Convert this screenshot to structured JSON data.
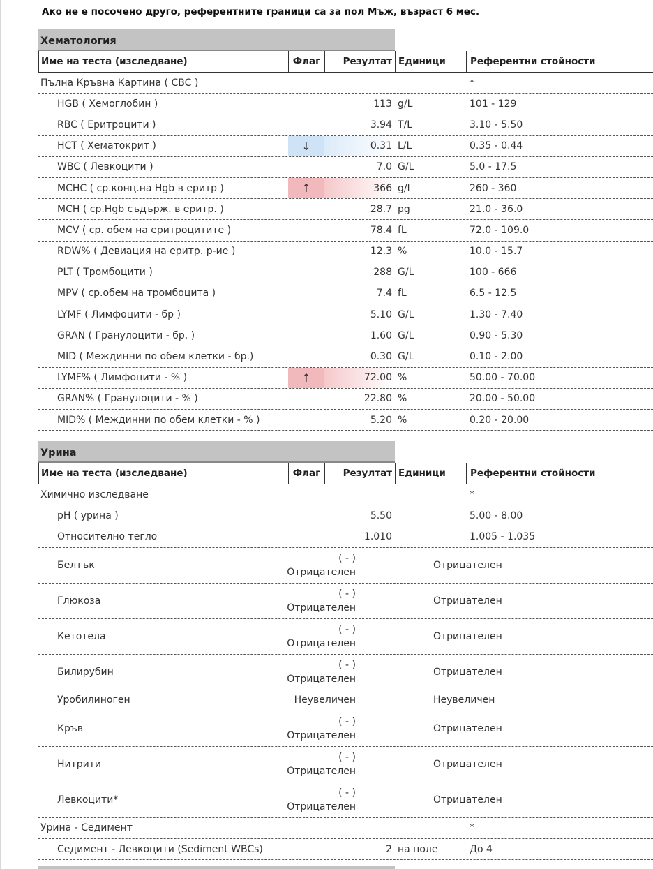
{
  "note": "Ако не е посочено друго, референтните граници са за пол Мъж, възраст 6 мес.",
  "columns": {
    "name": "Име на теста (изследване)",
    "flag": "Флаг",
    "result": "Резултат",
    "units": "Единици",
    "ref": "Референтни стойности"
  },
  "colors": {
    "low_flag": "#cfe3f7",
    "high_flag": "#f2b9bc",
    "section_bg": "#c3c3c3"
  },
  "sections": [
    {
      "title": "Хематология",
      "rows": [
        {
          "name": "Пълна Кръвна Картина ( CBC )",
          "group": true,
          "flag": "",
          "result": "",
          "units": "",
          "ref": "*"
        },
        {
          "name": "HGB ( Хемоглобин )",
          "flag": "",
          "result": "113",
          "units": "g/L",
          "ref": "101 - 129"
        },
        {
          "name": "RBC ( Еритроцити )",
          "flag": "",
          "result": "3.94",
          "units": "T/L",
          "ref": "3.10 - 5.50"
        },
        {
          "name": "HCT ( Хематокрит )",
          "flag": "↓",
          "flag_type": "low",
          "result": "0.31",
          "units": "L/L",
          "ref": "0.35 - 0.44"
        },
        {
          "name": "WBC ( Левкоцити )",
          "flag": "",
          "result": "7.0",
          "units": "G/L",
          "ref": "5.0 - 17.5"
        },
        {
          "name": "MCHC ( ср.конц.на Hgb в еритр )",
          "flag": "↑",
          "flag_type": "high",
          "result": "366",
          "units": "g/l",
          "ref": "260 - 360"
        },
        {
          "name": "MCH ( ср.Hgb съдърж. в еритр. )",
          "flag": "",
          "result": "28.7",
          "units": "pg",
          "ref": "21.0 - 36.0"
        },
        {
          "name": "MCV ( ср. обем на еритроцитите )",
          "flag": "",
          "result": "78.4",
          "units": "fL",
          "ref": "72.0 - 109.0"
        },
        {
          "name": "RDW% ( Девиация на еритр. р-ие )",
          "flag": "",
          "result": "12.3",
          "units": "%",
          "ref": "10.0 - 15.7"
        },
        {
          "name": "PLT ( Тромбоцити )",
          "flag": "",
          "result": "288",
          "units": "G/L",
          "ref": "100 - 666"
        },
        {
          "name": "MPV ( ср.обем на тромбоцита )",
          "flag": "",
          "result": "7.4",
          "units": "fL",
          "ref": "6.5 - 12.5"
        },
        {
          "name": "LYMF ( Лимфоцити - бр )",
          "flag": "",
          "result": "5.10",
          "units": "G/L",
          "ref": "1.30 - 7.40"
        },
        {
          "name": "GRAN ( Гранулоцити - бр. )",
          "flag": "",
          "result": "1.60",
          "units": "G/L",
          "ref": "0.90 - 5.30"
        },
        {
          "name": "MID ( Междинни по обем клетки - бр.)",
          "flag": "",
          "result": "0.30",
          "units": "G/L",
          "ref": "0.10 - 2.00"
        },
        {
          "name": "LYMF% ( Лимфоцити - % )",
          "flag": "↑",
          "flag_type": "high",
          "result": "72.00",
          "units": "%",
          "ref": "50.00 - 70.00"
        },
        {
          "name": "GRAN% ( Гранулоцити - % )",
          "flag": "",
          "result": "22.80",
          "units": "%",
          "ref": "20.00 - 50.00"
        },
        {
          "name": "MID% ( Междинни по обем клетки - % )",
          "flag": "",
          "result": "5.20",
          "units": "%",
          "ref": "0.20 - 20.00"
        }
      ]
    },
    {
      "title": "Урина",
      "rows": [
        {
          "name": "Химично изследване",
          "group": true,
          "flag": "",
          "result": "",
          "units": "",
          "ref": "*"
        },
        {
          "name": "pH ( урина )",
          "flag": "",
          "result": "5.50",
          "units": "",
          "ref": "5.00 - 8.00"
        },
        {
          "name": "Относително тегло",
          "flag": "",
          "result": "1.010",
          "units": "",
          "ref": "1.005 - 1.035"
        },
        {
          "name": "Белтък",
          "flag": "",
          "result": "( - )",
          "result2": "Отрицателен",
          "units": "",
          "ref": "Отрицателен"
        },
        {
          "name": "Глюкоза",
          "flag": "",
          "result": "( - )",
          "result2": "Отрицателен",
          "units": "",
          "ref": "Отрицателен"
        },
        {
          "name": "Кетотела",
          "flag": "",
          "result": "( - )",
          "result2": "Отрицателен",
          "units": "",
          "ref": "Отрицателен"
        },
        {
          "name": "Билирубин",
          "flag": "",
          "result": "( - )",
          "result2": "Отрицателен",
          "units": "",
          "ref": "Отрицателен"
        },
        {
          "name": "Уробилиноген",
          "flag": "",
          "result": "Неувеличен",
          "wide": true,
          "units": "",
          "ref": "Неувеличен"
        },
        {
          "name": "Кръв",
          "flag": "",
          "result": "( - )",
          "result2": "Отрицателен",
          "units": "",
          "ref": "Отрицателен"
        },
        {
          "name": "Нитрити",
          "flag": "",
          "result": "( - )",
          "result2": "Отрицателен",
          "units": "",
          "ref": "Отрицателен"
        },
        {
          "name": "Левкоцити*",
          "flag": "",
          "result": "( - )",
          "result2": "Отрицателен",
          "units": "",
          "ref": "Отрицателен"
        },
        {
          "name": "Урина - Седимент",
          "group": true,
          "flag": "",
          "result": "",
          "units": "",
          "ref": "*"
        },
        {
          "name": "Седимент - Левкоцити (Sediment WBCs)",
          "flag": "",
          "result": "2",
          "units": "на поле",
          "ref": "До 4"
        }
      ]
    }
  ]
}
